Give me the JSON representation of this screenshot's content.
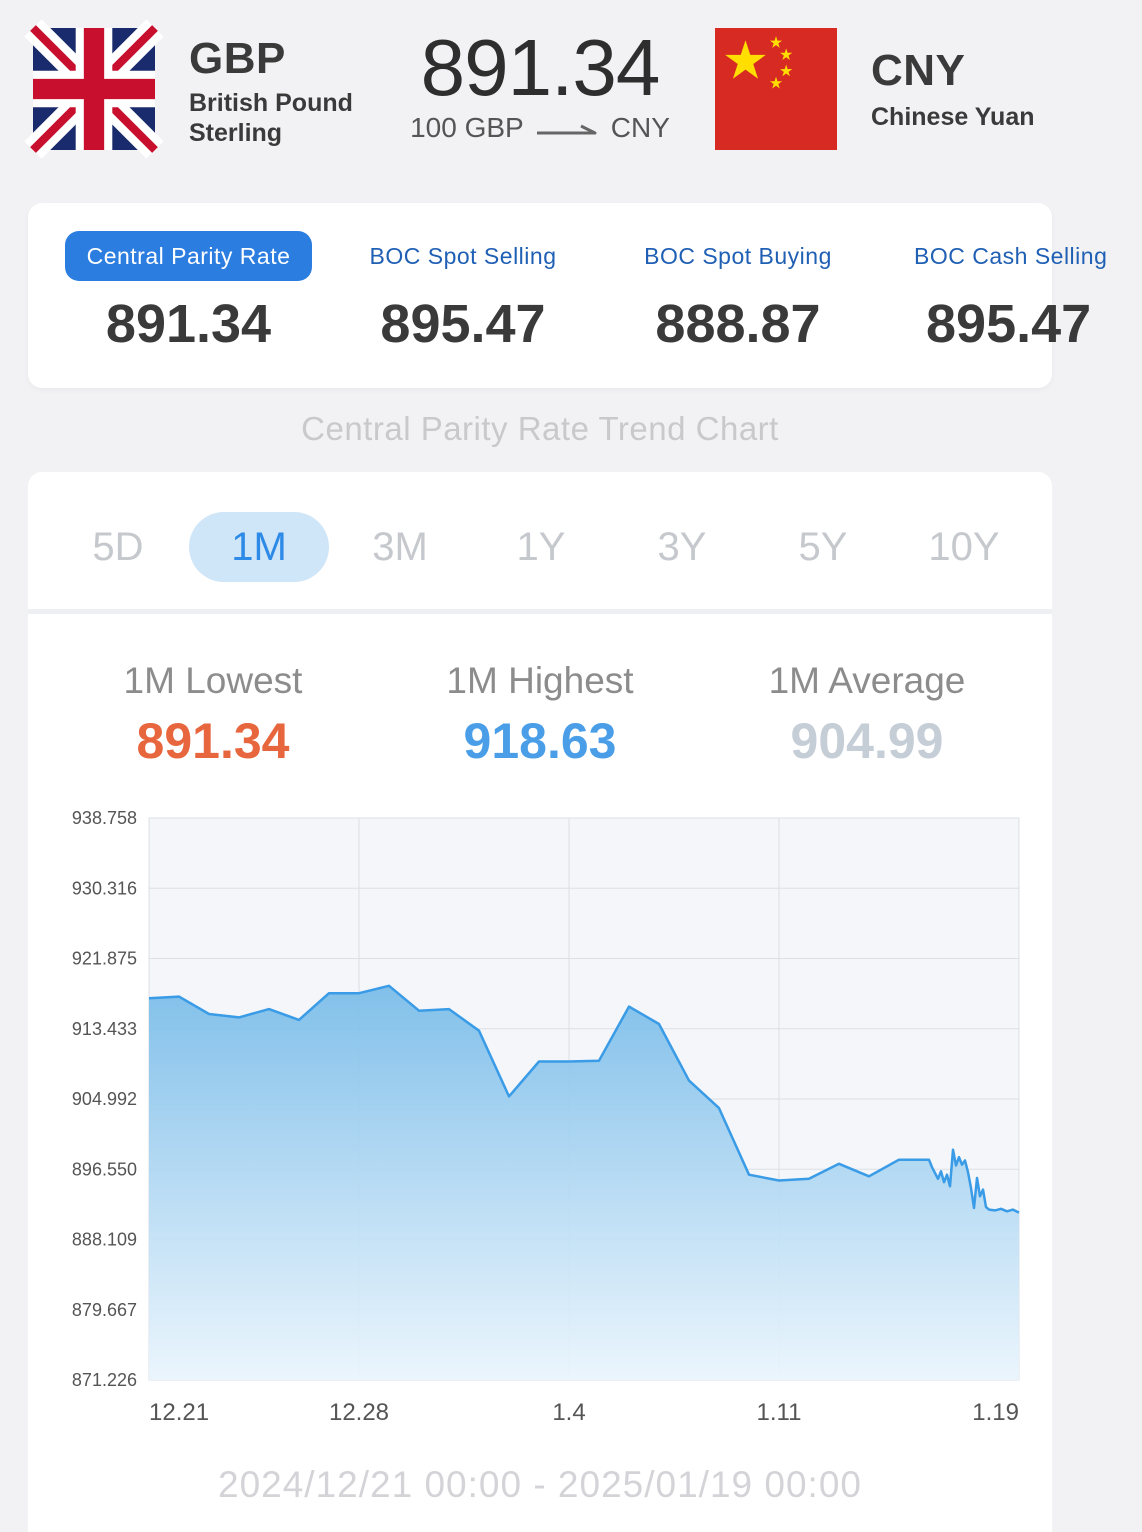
{
  "base": {
    "code": "GBP",
    "name": "British Pound Sterling",
    "flag": "uk-flag-icon"
  },
  "quote": {
    "code": "CNY",
    "name": "Chinese Yuan",
    "flag": "china-flag-icon"
  },
  "rate": {
    "value": "891.34",
    "amount": "100 GBP",
    "quote_code": "CNY"
  },
  "rate_tabs": [
    {
      "label": "Central Parity Rate",
      "value": "891.34",
      "active": true
    },
    {
      "label": "BOC Spot Selling",
      "value": "895.47",
      "active": false
    },
    {
      "label": "BOC Spot Buying",
      "value": "888.87",
      "active": false
    },
    {
      "label": "BOC Cash Selling",
      "value": "895.47",
      "active": false
    }
  ],
  "trend_title": "Central Parity Rate Trend Chart",
  "periods": [
    {
      "label": "5D",
      "active": false
    },
    {
      "label": "1M",
      "active": true
    },
    {
      "label": "3M",
      "active": false
    },
    {
      "label": "1Y",
      "active": false
    },
    {
      "label": "3Y",
      "active": false
    },
    {
      "label": "5Y",
      "active": false
    },
    {
      "label": "10Y",
      "active": false
    }
  ],
  "stats": {
    "lowest_label": "1M Lowest",
    "lowest_value": "891.34",
    "highest_label": "1M Highest",
    "highest_value": "918.63",
    "average_label": "1M Average",
    "average_value": "904.99"
  },
  "range_text": "2024/12/21 00:00 - 2025/01/19 00:00",
  "colors": {
    "accent": "#2b7de0",
    "lowest": "#e8663d",
    "highest": "#4a9ee8",
    "line": "#3a9be6"
  },
  "chart_data": {
    "type": "area",
    "title": "",
    "xlabel": "",
    "ylabel": "",
    "ylim": [
      871.226,
      938.758
    ],
    "y_ticks": [
      "938.758",
      "930.316",
      "921.875",
      "913.433",
      "904.992",
      "896.550",
      "888.109",
      "879.667",
      "871.226"
    ],
    "x_ticks": [
      {
        "label": "12.21",
        "day": 0
      },
      {
        "label": "12.28",
        "day": 7
      },
      {
        "label": "1.4",
        "day": 14
      },
      {
        "label": "1.11",
        "day": 21
      },
      {
        "label": "1.19",
        "day": 29
      }
    ],
    "x_range": [
      0,
      29
    ],
    "grid": true,
    "series": [
      {
        "values": [
          [
            0,
            917.1
          ],
          [
            1,
            917.3
          ],
          [
            2,
            915.2
          ],
          [
            3,
            914.8
          ],
          [
            4,
            915.8
          ],
          [
            5,
            914.5
          ],
          [
            6,
            917.7
          ],
          [
            7,
            917.7
          ],
          [
            8,
            918.6
          ],
          [
            9,
            915.6
          ],
          [
            10,
            915.8
          ],
          [
            11,
            913.2
          ],
          [
            12,
            905.3
          ],
          [
            13,
            909.5
          ],
          [
            14,
            909.5
          ],
          [
            15,
            909.6
          ],
          [
            16,
            916.1
          ],
          [
            17,
            914.0
          ],
          [
            18,
            907.2
          ],
          [
            19,
            903.9
          ],
          [
            20,
            895.9
          ],
          [
            21,
            895.2
          ],
          [
            22,
            895.4
          ],
          [
            23,
            897.2
          ],
          [
            24,
            895.7
          ],
          [
            25,
            897.7
          ],
          [
            26,
            897.7
          ],
          [
            26.1,
            896.8
          ],
          [
            26.3,
            895.4
          ],
          [
            26.4,
            896.3
          ],
          [
            26.5,
            895.0
          ],
          [
            26.6,
            895.9
          ],
          [
            26.7,
            894.5
          ],
          [
            26.8,
            898.9
          ],
          [
            26.9,
            897.0
          ],
          [
            27.0,
            898.0
          ],
          [
            27.1,
            897.1
          ],
          [
            27.2,
            897.6
          ],
          [
            27.3,
            896.2
          ],
          [
            27.4,
            894.3
          ],
          [
            27.5,
            891.9
          ],
          [
            27.6,
            895.5
          ],
          [
            27.7,
            893.3
          ],
          [
            27.8,
            894.1
          ],
          [
            27.9,
            892.0
          ],
          [
            28.0,
            891.7
          ],
          [
            28.2,
            891.6
          ],
          [
            28.4,
            891.8
          ],
          [
            28.6,
            891.5
          ],
          [
            28.8,
            891.7
          ],
          [
            29,
            891.34
          ]
        ]
      }
    ]
  }
}
